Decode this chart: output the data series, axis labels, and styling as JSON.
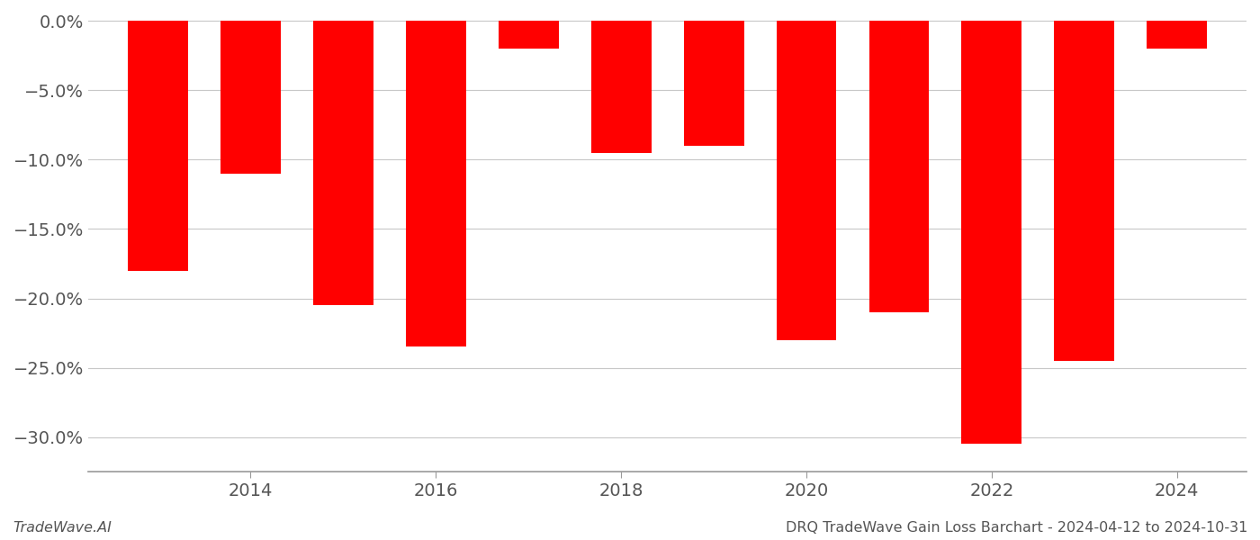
{
  "years": [
    2013,
    2014,
    2015,
    2016,
    2017,
    2018,
    2019,
    2020,
    2021,
    2022,
    2023,
    2024
  ],
  "values": [
    -0.18,
    -0.11,
    -0.205,
    -0.235,
    -0.02,
    -0.095,
    -0.09,
    -0.23,
    -0.21,
    -0.305,
    -0.245,
    -0.02
  ],
  "bar_color": "#ff0000",
  "background_color": "#ffffff",
  "grid_color": "#c8c8c8",
  "axis_color": "#999999",
  "text_color": "#555555",
  "footer_left": "TradeWave.AI",
  "footer_right": "DRQ TradeWave Gain Loss Barchart - 2024-04-12 to 2024-10-31",
  "ylim": [
    -0.325,
    0.005
  ],
  "ytick_values": [
    0.0,
    -0.05,
    -0.1,
    -0.15,
    -0.2,
    -0.25,
    -0.3
  ],
  "bar_width": 0.65,
  "tick_fontsize": 14,
  "footer_fontsize": 11.5
}
